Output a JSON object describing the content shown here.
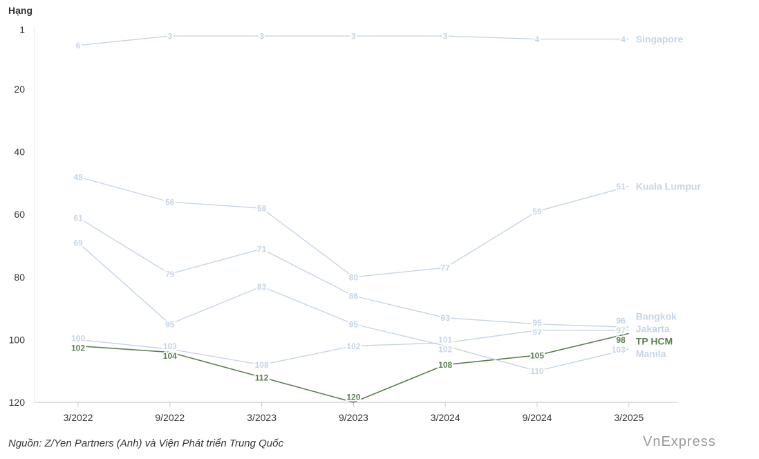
{
  "chart_data": {
    "type": "line",
    "ylabel": "Hạng",
    "categories": [
      "3/2022",
      "9/2022",
      "3/2023",
      "9/2023",
      "3/2024",
      "9/2024",
      "3/2025"
    ],
    "yticks": [
      1,
      20,
      40,
      60,
      80,
      100,
      120
    ],
    "ylim": [
      1,
      120
    ],
    "y_inverted": true,
    "series": [
      {
        "name": "Singapore",
        "values": [
          6,
          3,
          3,
          3,
          3,
          4,
          4
        ],
        "color": "#c5d4e6"
      },
      {
        "name": "Kuala Lumpur",
        "values": [
          48,
          56,
          58,
          80,
          77,
          59,
          51
        ],
        "color": "#c5d4e6"
      },
      {
        "name": "Bangkok",
        "values": [
          61,
          79,
          71,
          86,
          93,
          95,
          96
        ],
        "color": "#c5d4e6"
      },
      {
        "name": "Jakarta",
        "values": [
          100,
          103,
          108,
          102,
          101,
          97,
          97
        ],
        "color": "#c5d4e6"
      },
      {
        "name": "TP HCM",
        "values": [
          102,
          104,
          112,
          120,
          108,
          105,
          98
        ],
        "color": "#5a7f4e"
      },
      {
        "name": "Manila",
        "values": [
          69,
          95,
          83,
          95,
          102,
          110,
          103
        ],
        "color": "#c5d4e6"
      }
    ]
  },
  "source": "Nguồn: Z/Yen Partners (Anh) và Viện Phát triển Trung Quốc",
  "logo": "VnExpress"
}
